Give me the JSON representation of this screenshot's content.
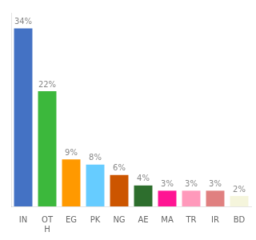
{
  "chart_data": {
    "type": "bar",
    "categories": [
      "IN",
      "OT\nH",
      "EG",
      "PK",
      "NG",
      "AE",
      "MA",
      "TR",
      "IR",
      "BD"
    ],
    "values": [
      34,
      22,
      9,
      8,
      6,
      4,
      3,
      3,
      3,
      2
    ],
    "value_labels": [
      "34%",
      "22%",
      "9%",
      "8%",
      "6%",
      "4%",
      "3%",
      "3%",
      "3%",
      "2%"
    ],
    "colors": [
      "#4472c4",
      "#3cb83c",
      "#ff9900",
      "#66ccff",
      "#cc5500",
      "#2d6e2d",
      "#ff1493",
      "#ff99bb",
      "#e08080",
      "#f5f5dc"
    ],
    "ylim": [
      0,
      37
    ],
    "grid": false,
    "data_labels": true,
    "tick_labels": "x"
  }
}
